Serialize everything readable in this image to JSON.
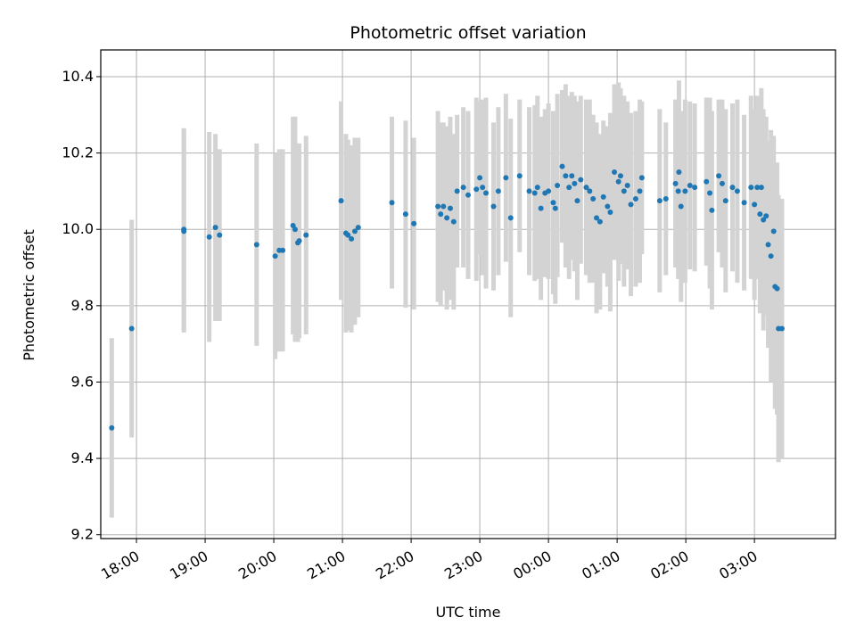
{
  "chart_data": {
    "type": "scatter",
    "title": "Photometric offset variation",
    "xlabel": "UTC time",
    "ylabel": "Photometric offset",
    "x_unit": "hours",
    "xlim": [
      17.48,
      28.18
    ],
    "ylim": [
      9.19,
      10.47
    ],
    "x_ticks": [
      {
        "value": 18,
        "label": "18:00"
      },
      {
        "value": 19,
        "label": "19:00"
      },
      {
        "value": 20,
        "label": "20:00"
      },
      {
        "value": 21,
        "label": "21:00"
      },
      {
        "value": 22,
        "label": "22:00"
      },
      {
        "value": 23,
        "label": "23:00"
      },
      {
        "value": 24,
        "label": "00:00"
      },
      {
        "value": 25,
        "label": "01:00"
      },
      {
        "value": 26,
        "label": "02:00"
      },
      {
        "value": 27,
        "label": "03:00"
      }
    ],
    "y_ticks": [
      {
        "value": 9.2,
        "label": "9.2"
      },
      {
        "value": 9.4,
        "label": "9.4"
      },
      {
        "value": 9.6,
        "label": "9.6"
      },
      {
        "value": 9.8,
        "label": "9.8"
      },
      {
        "value": 10.0,
        "label": "10.0"
      },
      {
        "value": 10.2,
        "label": "10.2"
      },
      {
        "value": 10.4,
        "label": "10.4"
      }
    ],
    "grid": true,
    "colors": {
      "points": "#1f77b4",
      "errorbars": "#d3d3d3",
      "grid": "#b0b0b0"
    },
    "series": [
      {
        "x": [
          17.64,
          17.93,
          18.69,
          18.69,
          19.06,
          19.15,
          19.21,
          19.75,
          20.02,
          20.08,
          20.13,
          20.28,
          20.31,
          20.35,
          20.37,
          20.47,
          20.98,
          21.05,
          21.08,
          21.13,
          21.18,
          21.23,
          21.72,
          21.92,
          22.04,
          22.39,
          22.43,
          22.47,
          22.52,
          22.57,
          22.62,
          22.67,
          22.76,
          22.83,
          22.95,
          23.0,
          23.04,
          23.09,
          23.2,
          23.27,
          23.38,
          23.45,
          23.58,
          23.72,
          23.8,
          23.84,
          23.89,
          23.95,
          24.0,
          24.07,
          24.1,
          24.13,
          24.2,
          24.25,
          24.3,
          24.34,
          24.38,
          24.42,
          24.47,
          24.55,
          24.6,
          24.65,
          24.7,
          24.75,
          24.8,
          24.86,
          24.9,
          24.96,
          25.02,
          25.05,
          25.1,
          25.15,
          25.2,
          25.27,
          25.33,
          25.36,
          25.62,
          25.71,
          25.85,
          25.89,
          25.9,
          25.93,
          25.99,
          26.06,
          26.13,
          26.3,
          26.35,
          26.38,
          26.48,
          26.53,
          26.58,
          26.68,
          26.75,
          26.85,
          26.95,
          27.0,
          27.04,
          27.08,
          27.1,
          27.13,
          27.17,
          27.2,
          27.24,
          27.28,
          27.3,
          27.33,
          27.35,
          27.4
        ],
        "y": [
          9.48,
          9.74,
          10.0,
          9.995,
          9.98,
          10.005,
          9.985,
          9.96,
          9.93,
          9.945,
          9.945,
          10.01,
          10.0,
          9.965,
          9.97,
          9.985,
          10.075,
          9.99,
          9.985,
          9.975,
          9.995,
          10.005,
          10.07,
          10.04,
          10.015,
          10.06,
          10.04,
          10.06,
          10.03,
          10.055,
          10.02,
          10.1,
          10.11,
          10.09,
          10.105,
          10.135,
          10.11,
          10.095,
          10.06,
          10.1,
          10.135,
          10.03,
          10.14,
          10.1,
          10.095,
          10.11,
          10.055,
          10.095,
          10.1,
          10.07,
          10.055,
          10.115,
          10.165,
          10.14,
          10.11,
          10.14,
          10.12,
          10.075,
          10.13,
          10.11,
          10.1,
          10.08,
          10.03,
          10.02,
          10.085,
          10.06,
          10.045,
          10.15,
          10.125,
          10.14,
          10.1,
          10.115,
          10.065,
          10.08,
          10.1,
          10.135,
          10.075,
          10.08,
          10.12,
          10.1,
          10.15,
          10.06,
          10.1,
          10.115,
          10.11,
          10.125,
          10.095,
          10.05,
          10.14,
          10.12,
          10.075,
          10.11,
          10.1,
          10.07,
          10.11,
          10.065,
          10.11,
          10.04,
          10.11,
          10.025,
          10.035,
          9.96,
          9.93,
          9.995,
          9.85,
          9.845,
          9.74,
          9.74
        ],
        "err": [
          0.235,
          0.285,
          0.265,
          0.265,
          0.275,
          0.245,
          0.225,
          0.265,
          0.27,
          0.265,
          0.265,
          0.285,
          0.295,
          0.26,
          0.255,
          0.26,
          0.26,
          0.26,
          0.25,
          0.245,
          0.245,
          0.235,
          0.225,
          0.245,
          0.225,
          0.25,
          0.24,
          0.22,
          0.24,
          0.24,
          0.23,
          0.2,
          0.21,
          0.22,
          0.24,
          0.2,
          0.23,
          0.25,
          0.22,
          0.22,
          0.22,
          0.26,
          0.2,
          0.22,
          0.23,
          0.24,
          0.24,
          0.22,
          0.23,
          0.24,
          0.25,
          0.24,
          0.2,
          0.24,
          0.24,
          0.22,
          0.23,
          0.26,
          0.22,
          0.23,
          0.24,
          0.22,
          0.25,
          0.23,
          0.2,
          0.21,
          0.26,
          0.23,
          0.26,
          0.23,
          0.25,
          0.22,
          0.24,
          0.23,
          0.24,
          0.2,
          0.24,
          0.2,
          0.22,
          0.23,
          0.24,
          0.25,
          0.24,
          0.22,
          0.22,
          0.22,
          0.25,
          0.26,
          0.2,
          0.22,
          0.24,
          0.22,
          0.24,
          0.23,
          0.24,
          0.25,
          0.24,
          0.26,
          0.26,
          0.29,
          0.26,
          0.27,
          0.33,
          0.25,
          0.32,
          0.33,
          0.35,
          0.34
        ]
      }
    ]
  }
}
